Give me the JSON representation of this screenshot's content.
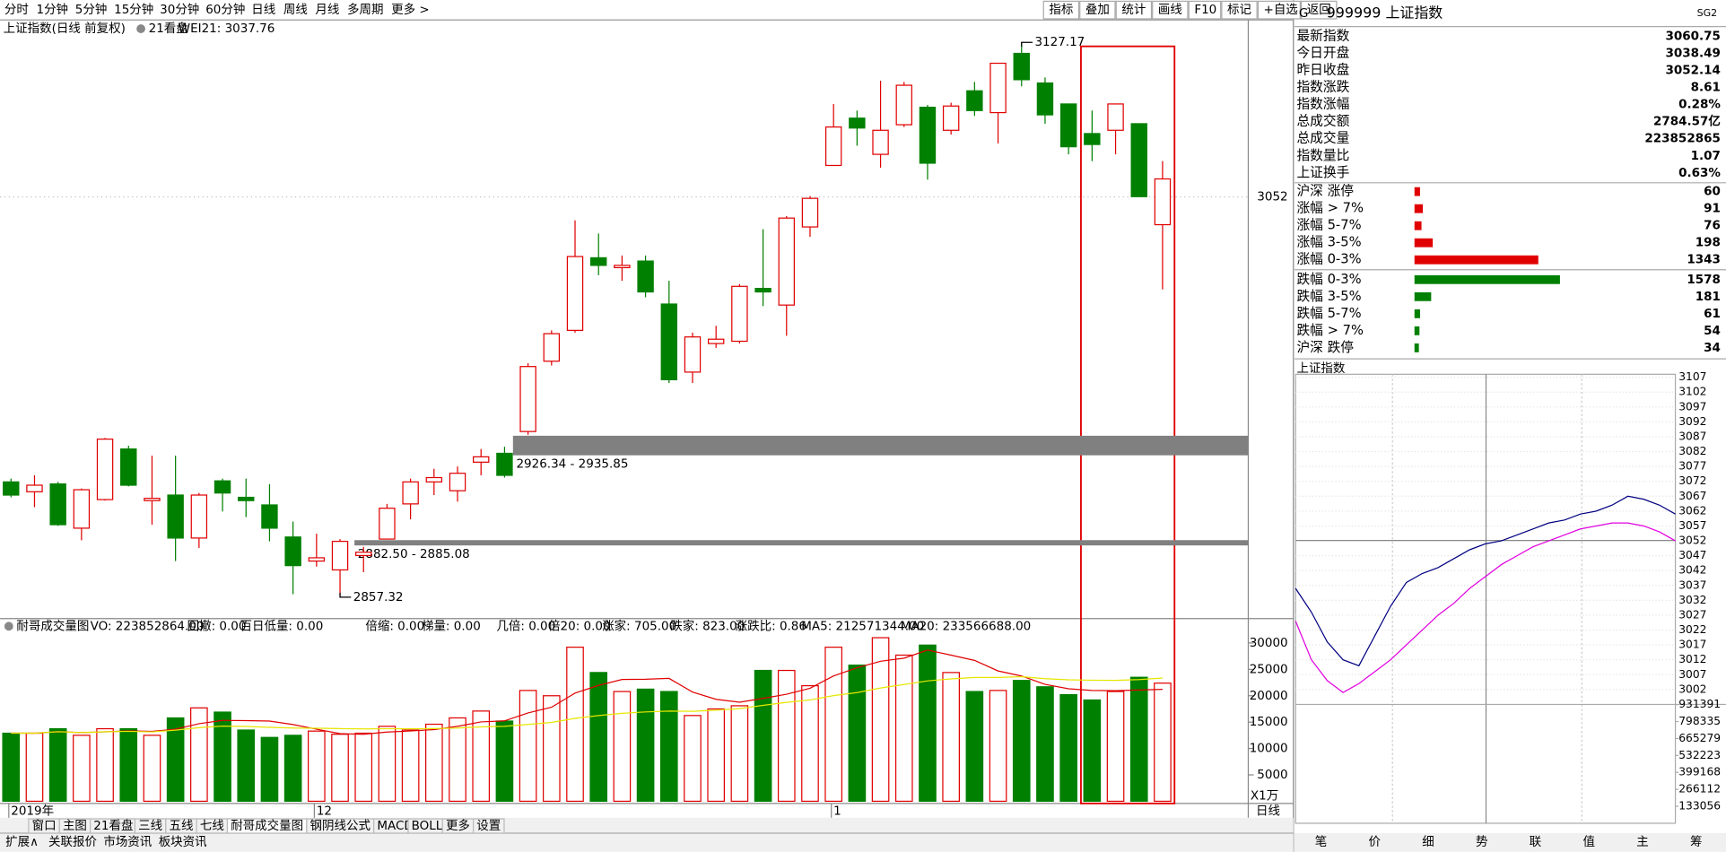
{
  "toolbar": {
    "periods": [
      "分时",
      "1分钟",
      "5分钟",
      "15分钟",
      "30分钟",
      "60分钟",
      "日线",
      "周线",
      "月线",
      "多周期",
      "更多 >"
    ],
    "active": 6,
    "tools": [
      "指标",
      "叠加",
      "统计",
      "画线",
      "F10",
      "标记",
      "+自选",
      "返回"
    ]
  },
  "kline": {
    "title": "上证指数(日线 前复权)",
    "panel": "21看盘",
    "wei": "WEI21: 3037.76",
    "ylim": [
      2848,
      3137
    ],
    "yticks": [
      3052
    ],
    "candles": {
      "open": [
        2913.4,
        2908.6,
        2912.4,
        2890.9,
        2904.8,
        2929.4,
        2904.3,
        2907.0,
        2886.1,
        2913.9,
        2905.9,
        2902.2,
        2886.6,
        2874.9,
        2870.6,
        2877.6,
        2885.6,
        2902.7,
        2913.4,
        2909.1,
        2923.0,
        2927.3,
        2937.9,
        2972.1,
        2987.1,
        3022.4,
        3017.6,
        3020.8,
        2999.9,
        2966.8,
        2980.7,
        2981.8,
        3007.5,
        2999.4,
        3037.4,
        3067.3,
        3090.3,
        3072.7,
        3087.1,
        3095.6,
        3084.4,
        3103.6,
        3093.0,
        3121.8,
        3107.4,
        3097.2,
        3082.8,
        3084.4,
        3087.6,
        3038.49
      ],
      "high": [
        2915.0,
        2916.6,
        2913.4,
        2910.2,
        2934.8,
        2931.0,
        2926.2,
        2926.2,
        2908.0,
        2915.0,
        2915.0,
        2912.3,
        2894.1,
        2888.2,
        2885.6,
        2881.8,
        2902.7,
        2915.0,
        2919.8,
        2920.9,
        2929.4,
        2930.5,
        2971.1,
        2987.1,
        3040.6,
        3034.2,
        3023.5,
        3023.5,
        3011.2,
        2986.0,
        2989.3,
        3009.6,
        3036.3,
        3042.7,
        3052.4,
        3097.2,
        3094.0,
        3108.5,
        3107.9,
        3096.7,
        3097.8,
        3107.9,
        3117.0,
        3127.17,
        3110.1,
        3097.2,
        3094.0,
        3097.2,
        3087.6,
        3069.4
      ],
      "low": [
        2905.9,
        2901.1,
        2892.0,
        2885.0,
        2904.3,
        2911.2,
        2892.6,
        2874.9,
        2881.3,
        2899.0,
        2896.3,
        2884.5,
        2858.8,
        2872.2,
        2857.32,
        2869.5,
        2885.6,
        2895.2,
        2907.0,
        2903.8,
        2916.6,
        2915.5,
        2936.3,
        2970.0,
        2986.0,
        3013.9,
        3011.2,
        3003.2,
        2961.5,
        2961.5,
        2978.6,
        2980.7,
        2998.9,
        2984.5,
        3032.6,
        3067.3,
        3076.9,
        3066.2,
        3086.0,
        3060.4,
        3082.3,
        3091.4,
        3078.0,
        3105.8,
        3087.6,
        3072.7,
        3069.4,
        3072.7,
        3052.3,
        3007.0
      ],
      "close": [
        2907.0,
        2911.8,
        2892.6,
        2909.6,
        2934.2,
        2911.8,
        2905.4,
        2886.1,
        2907.0,
        2908.0,
        2904.3,
        2890.9,
        2872.7,
        2876.5,
        2884.5,
        2879.2,
        2900.6,
        2913.4,
        2915.5,
        2917.6,
        2925.6,
        2916.6,
        2969.5,
        2985.5,
        3023.0,
        3018.7,
        3018.7,
        3005.8,
        2963.1,
        2983.9,
        2982.8,
        3008.5,
        3005.8,
        3041.7,
        3051.3,
        3086.0,
        3085.5,
        3084.4,
        3106.3,
        3068.4,
        3096.2,
        3094.0,
        3117.0,
        3109.0,
        3091.9,
        3076.4,
        3077.5,
        3097.2,
        3052.14,
        3060.75
      ]
    },
    "high_point": 3127.17,
    "low_point": 2857.32,
    "zones": [
      {
        "label": "2926.34 - 2935.85",
        "range": [
          2926.34,
          2935.85
        ]
      },
      {
        "label": "2882.50 - 2885.08",
        "range": [
          2882.5,
          2885.08
        ]
      }
    ],
    "x_labels": [
      "2019年",
      null,
      null,
      null,
      null,
      null,
      null,
      null,
      null,
      null,
      null,
      null,
      null,
      "12",
      null,
      null,
      null,
      null,
      null,
      null,
      null,
      null,
      null,
      null,
      null,
      null,
      null,
      null,
      null,
      null,
      null,
      null,
      null,
      null,
      null,
      "1",
      null,
      null,
      null,
      null,
      null,
      null,
      null,
      null,
      null,
      null,
      null,
      null,
      null,
      null
    ]
  },
  "volume": {
    "title": "耐哥成交量图",
    "unit": "X1万",
    "ylim": [
      0,
      34000
    ],
    "yticks": [
      5000,
      10000,
      15000,
      20000,
      25000,
      30000
    ],
    "indicators": [
      {
        "text": "VO: 223852864.00",
        "color": "#000080"
      },
      {
        "text": "回撤: 0.00",
        "color": "#c8c800"
      },
      {
        "text": "百日低量: 0.00",
        "color": "#d00000"
      },
      {
        "text": "倍缩: 0.00",
        "color": "#d000d0"
      },
      {
        "text": "梯量: 0.00",
        "color": "#800080"
      },
      {
        "text": "几倍: 0.00",
        "color": "#c8c800"
      },
      {
        "text": "倍20: 0.00",
        "color": "#c8c800"
      },
      {
        "text": "涨家: 705.00",
        "color": "#d000d0"
      },
      {
        "text": "跌家: 823.00",
        "color": "#008000"
      },
      {
        "text": "涨跌比: 0.86",
        "color": "#000000"
      },
      {
        "text": "MA5: 212571344.00",
        "color": "#d00000"
      },
      {
        "text": "MA20: 233566688.00",
        "color": "#c8c800"
      }
    ],
    "values": [
      12900,
      12900,
      13750,
      12500,
      13750,
      13750,
      12500,
      15800,
      17700,
      16900,
      13500,
      12100,
      12500,
      13300,
      12700,
      12900,
      14200,
      13500,
      14600,
      15800,
      17100,
      15200,
      21000,
      20000,
      29200,
      24400,
      20800,
      21250,
      20800,
      16250,
      17500,
      18100,
      24800,
      24800,
      21900,
      29200,
      25800,
      31000,
      27700,
      29600,
      24400,
      20800,
      21000,
      22900,
      21700,
      20200,
      19200,
      20800,
      23500,
      22385.29
    ]
  },
  "quote": {
    "mark": "G",
    "code": "999999 上证指数",
    "tag": "SG2",
    "stats": [
      {
        "label": "最新指数",
        "value": "3060.75",
        "color": "#e00000"
      },
      {
        "label": "今日开盘",
        "value": "3038.49",
        "color": "#e00000"
      },
      {
        "label": "昨日收盘",
        "value": "3052.14",
        "color": "#000000"
      },
      {
        "label": "指数涨跌",
        "value": "8.61",
        "color": "#e00000"
      },
      {
        "label": "指数涨幅",
        "value": "0.28%",
        "color": "#e00000"
      },
      {
        "label": "总成交额",
        "value": "2784.57亿",
        "color": "#e00000"
      },
      {
        "label": "总成交量",
        "value": "223852865",
        "color": "#e00000"
      },
      {
        "label": "指数量比",
        "value": "1.07",
        "color": "#e00000"
      },
      {
        "label": "上证换手",
        "value": "0.63%",
        "color": "#000000"
      }
    ]
  },
  "breadth": {
    "rows": [
      {
        "label": "沪深 涨停",
        "value": 60,
        "color": "#e00000"
      },
      {
        "label": "涨幅 > 7%",
        "value": 91,
        "color": "#e00000"
      },
      {
        "label": "涨幅 5-7%",
        "value": 76,
        "color": "#e00000"
      },
      {
        "label": "涨幅 3-5%",
        "value": 198,
        "color": "#e00000"
      },
      {
        "label": "涨幅 0-3%",
        "value": 1343,
        "color": "#e00000"
      },
      {
        "label": "跌幅 0-3%",
        "value": 1578,
        "color": "#008000"
      },
      {
        "label": "跌幅 3-5%",
        "value": 181,
        "color": "#008000"
      },
      {
        "label": "跌幅 5-7%",
        "value": 61,
        "color": "#008000"
      },
      {
        "label": "跌幅 > 7%",
        "value": 54,
        "color": "#008000"
      },
      {
        "label": "沪深 跌停",
        "value": 34,
        "color": "#008000"
      }
    ]
  },
  "intraday": {
    "title": "上证指数",
    "ylim": [
      2997,
      3108
    ],
    "prev_close": 3052.14,
    "yticks": [
      3107,
      3102,
      3097,
      3092,
      3087,
      3082,
      3077,
      3072,
      3067,
      3062,
      3057,
      3052,
      3047,
      3042,
      3037,
      3032,
      3027,
      3022,
      3017,
      3012,
      3007,
      3002
    ],
    "vol_ylim": [
      0,
      950000
    ],
    "vol_ticks": [
      931391,
      798335,
      665279,
      532223,
      399168,
      266112,
      133056
    ],
    "minutes": [
      0,
      10,
      20,
      30,
      40,
      50,
      60,
      70,
      80,
      90,
      100,
      110,
      120,
      130,
      140,
      150,
      160,
      170,
      180,
      190,
      200,
      210,
      220,
      230,
      240
    ],
    "index": [
      3036,
      3028,
      3018,
      3012,
      3010,
      3020,
      3030,
      3038,
      3041,
      3043,
      3046,
      3049,
      3051,
      3052,
      3054,
      3056,
      3058,
      3059,
      3061,
      3062,
      3064,
      3067,
      3066,
      3064,
      3061
    ],
    "avg": [
      3025,
      3012,
      3005,
      3001,
      3004,
      3008,
      3012,
      3017,
      3022,
      3027,
      3031,
      3036,
      3040,
      3044,
      3047,
      3050,
      3052,
      3054,
      3056,
      3057,
      3058,
      3058,
      3057,
      3055,
      3052
    ]
  },
  "tabs": {
    "main": [
      "窗口",
      "主图",
      "21看盘",
      "三线",
      "五线",
      "七线",
      "耐哥成交量图",
      "钢阴线公式",
      "MACD",
      "BOLL",
      "更多",
      "设置"
    ],
    "active": 6,
    "bottom": [
      "扩展∧",
      "关联报价",
      "市场资讯",
      "板块资讯"
    ],
    "period": "日线",
    "right": [
      "笔",
      "价",
      "细",
      "势",
      "联",
      "值",
      "主",
      "筹"
    ],
    "right_active": 3
  }
}
